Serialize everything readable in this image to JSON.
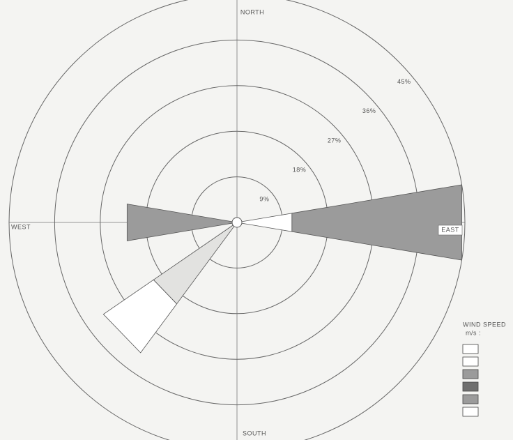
{
  "chart_data": {
    "type": "rose",
    "directions": [
      {
        "label": "NORTH",
        "angle": 0
      },
      {
        "label": "EAST",
        "angle": 90
      },
      {
        "label": "SOUTH",
        "angle": 180
      },
      {
        "label": "WEST",
        "angle": 270
      }
    ],
    "rlim": [
      0,
      45
    ],
    "rticks": [
      {
        "value": 9,
        "label": "9%"
      },
      {
        "value": 18,
        "label": "18%"
      },
      {
        "value": 27,
        "label": "27%"
      },
      {
        "value": 36,
        "label": "36%"
      },
      {
        "value": 45,
        "label": "45%"
      }
    ],
    "petals": [
      {
        "angle": 90,
        "values": [
          11,
          34
        ],
        "colors": [
          "#ffffff",
          "#9b9b9b"
        ]
      },
      {
        "angle": 270,
        "values": [
          22
        ],
        "colors": [
          "#9b9b9b"
        ]
      },
      {
        "angle": 226,
        "values": [
          20,
          12
        ],
        "colors": [
          "#e2e2e0",
          "#ffffff"
        ]
      }
    ],
    "legend": {
      "title": "WIND SPEED",
      "unit": "m/s :",
      "colors": [
        "#ffffff",
        "#ffffff",
        "#9b9b9b",
        "#6f6f6f",
        "#9b9b9b",
        "#ffffff"
      ]
    }
  }
}
